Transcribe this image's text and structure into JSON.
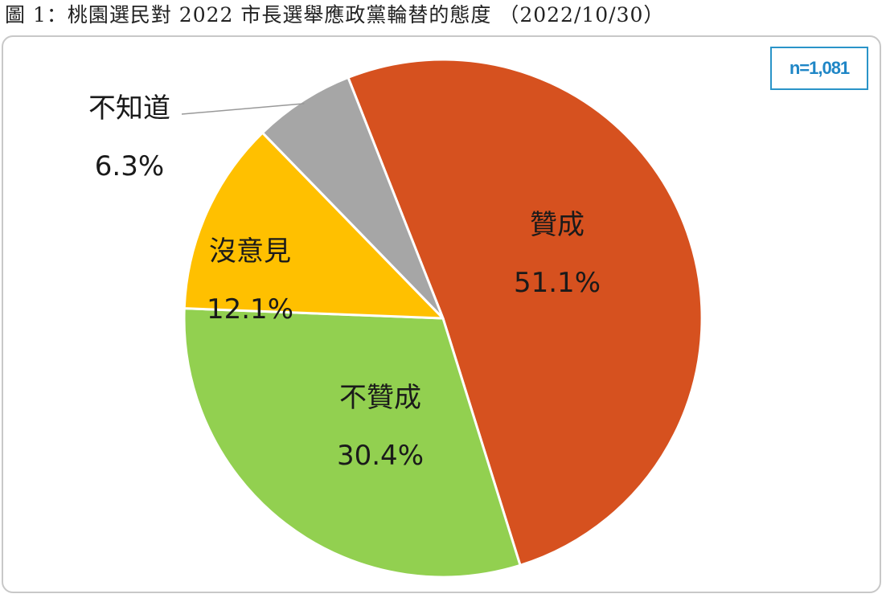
{
  "title": "圖 1：桃園選民對 2022 市長選舉應政黨輪替的態度 （2022/10/30）",
  "sample_size": "n=1,081",
  "chart_data": {
    "type": "pie",
    "title": "圖 1：桃園選民對 2022 市長選舉應政黨輪替的態度 （2022/10/30）",
    "slices": [
      {
        "label": "贊成",
        "value": 51.1,
        "display": "51.1%",
        "color": "#d6511f"
      },
      {
        "label": "不贊成",
        "value": 30.4,
        "display": "30.4%",
        "color": "#92d050"
      },
      {
        "label": "沒意見",
        "value": 12.1,
        "display": "12.1%",
        "color": "#ffc000"
      },
      {
        "label": "不知道",
        "value": 6.3,
        "display": "6.3%",
        "color": "#a6a6a6"
      }
    ],
    "start_angle_deg": -21.5,
    "direction": "clockwise",
    "annotation": "n=1,081"
  }
}
